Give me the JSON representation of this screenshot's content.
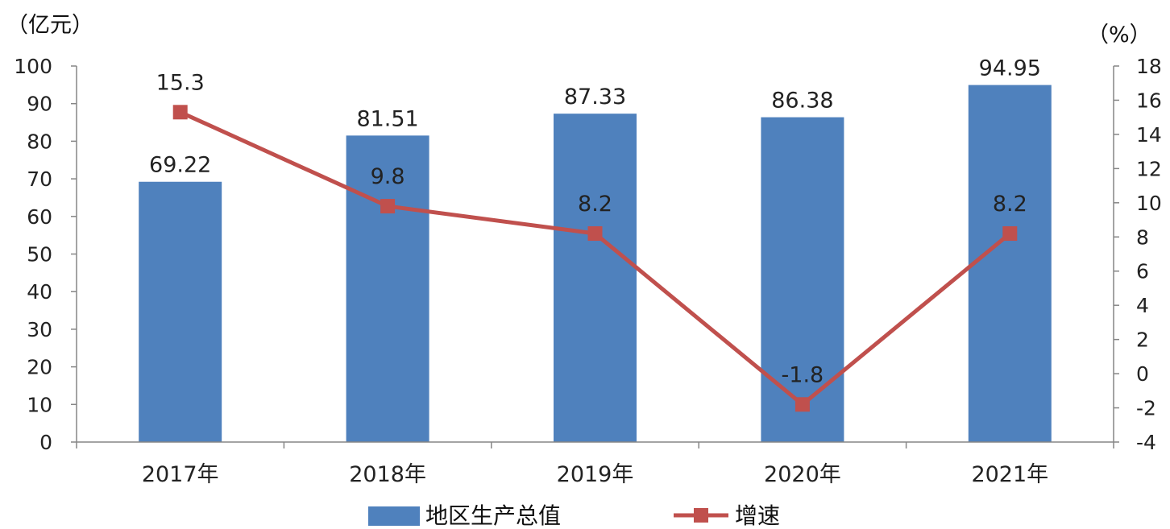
{
  "chart_data": {
    "type": "bar",
    "categories": [
      "2017年",
      "2018年",
      "2019年",
      "2020年",
      "2021年"
    ],
    "series": [
      {
        "name": "地区生产总值",
        "type": "bar",
        "axis": "left",
        "color": "#4f81bd",
        "values": [
          69.22,
          81.51,
          87.33,
          86.38,
          94.95
        ]
      },
      {
        "name": "增速",
        "type": "line",
        "axis": "right",
        "color": "#c0504d",
        "values": [
          15.3,
          9.8,
          8.2,
          -1.8,
          8.2
        ]
      }
    ],
    "value_labels": {
      "bars": [
        "69.22",
        "81.51",
        "87.33",
        "86.38",
        "94.95"
      ],
      "line": [
        "15.3",
        "9.8",
        "8.2",
        "-1.8",
        "8.2"
      ]
    },
    "y_left": {
      "unit": "（亿元）",
      "ylim": [
        0,
        100
      ],
      "ticks": [
        "0",
        "10",
        "20",
        "30",
        "40",
        "50",
        "60",
        "70",
        "80",
        "90",
        "100"
      ]
    },
    "y_right": {
      "unit": "（%）",
      "ylim": [
        -4,
        18
      ],
      "ticks": [
        "-4",
        "-2",
        "0",
        "2",
        "4",
        "6",
        "8",
        "10",
        "12",
        "14",
        "16",
        "18"
      ]
    },
    "grid": false,
    "legend_position": "bottom"
  }
}
